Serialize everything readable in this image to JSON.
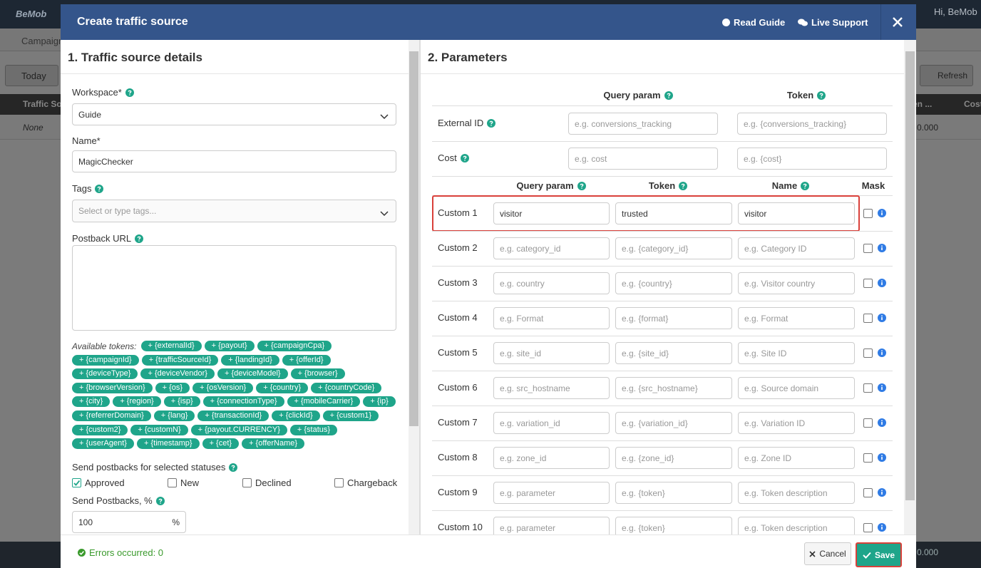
{
  "background": {
    "logo": "BeMob",
    "user": "Hi, BeMob",
    "tab": "Campaign",
    "date": "Today",
    "refresh": "Refresh",
    "column_1": "Traffic So",
    "row_1": "None",
    "column_2": "en ...",
    "column_3": "Cost",
    "cell_1": "0.000",
    "cell_2": "0.000"
  },
  "modal": {
    "title": "Create traffic source",
    "links": [
      "Read Guide",
      "Live Support"
    ]
  },
  "details": {
    "heading": "1. Traffic source details",
    "workspace": {
      "label": "Workspace*",
      "value": "Guide"
    },
    "name": {
      "label": "Name*",
      "value": "MagicChecker"
    },
    "tags": {
      "label": "Tags",
      "placeholder": "Select or type tags..."
    },
    "postback": {
      "label": "Postback URL"
    },
    "tokens_label": "Available tokens:",
    "tokens": [
      "+ {externalId}",
      "+ {payout}",
      "+ {campaignCpa}",
      "+ {campaignId}",
      "+ {trafficSourceId}",
      "+ {landingId}",
      "+ {offerId}",
      "+ {deviceType}",
      "+ {deviceVendor}",
      "+ {deviceModel}",
      "+ {browser}",
      "+ {browserVersion}",
      "+ {os}",
      "+ {osVersion}",
      "+ {country}",
      "+ {countryCode}",
      "+ {city}",
      "+ {region}",
      "+ {isp}",
      "+ {connectionType}",
      "+ {mobileCarrier}",
      "+ {ip}",
      "+ {referrerDomain}",
      "+ {lang}",
      "+ {transactionId}",
      "+ {clickId}",
      "+ {custom1}",
      "+ {custom2}",
      "+ {customN}",
      "+ {payout.CURRENCY}",
      "+ {status}",
      "+ {userAgent}",
      "+ {timestamp}",
      "+ {cet}",
      "+ {offerName}"
    ],
    "statuses_label": "Send postbacks for selected statuses",
    "statuses": [
      {
        "label": "Approved",
        "checked": true
      },
      {
        "label": "New",
        "checked": false
      },
      {
        "label": "Declined",
        "checked": false
      },
      {
        "label": "Chargeback",
        "checked": false
      }
    ],
    "percent": {
      "label": "Send Postbacks, %",
      "value": "100",
      "unit": "%"
    }
  },
  "params": {
    "heading": "2. Parameters",
    "header_1": [
      "Query param",
      "Token"
    ],
    "rows_1": [
      {
        "label": "External ID",
        "query": "e.g. conversions_tracking",
        "token": "e.g. {conversions_tracking}"
      },
      {
        "label": "Cost",
        "query": "e.g. cost",
        "token": "e.g. {cost}"
      }
    ],
    "header_2": [
      "Query param",
      "Token",
      "Name",
      "Mask"
    ],
    "custom": [
      {
        "label": "Custom 1",
        "query": "visitor",
        "token": "trusted",
        "name": "visitor",
        "filled": true,
        "mask": false,
        "highlight": true
      },
      {
        "label": "Custom 2",
        "query": "e.g. category_id",
        "token": "e.g. {category_id}",
        "name": "e.g. Category ID",
        "filled": false,
        "mask": false
      },
      {
        "label": "Custom 3",
        "query": "e.g. country",
        "token": "e.g. {country}",
        "name": "e.g. Visitor country",
        "filled": false,
        "mask": false
      },
      {
        "label": "Custom 4",
        "query": "e.g. Format",
        "token": "e.g. {format}",
        "name": "e.g. Format",
        "filled": false,
        "mask": false
      },
      {
        "label": "Custom 5",
        "query": "e.g. site_id",
        "token": "e.g. {site_id}",
        "name": "e.g. Site ID",
        "filled": false,
        "mask": false
      },
      {
        "label": "Custom 6",
        "query": "e.g. src_hostname",
        "token": "e.g. {src_hostname}",
        "name": "e.g. Source domain",
        "filled": false,
        "mask": false
      },
      {
        "label": "Custom 7",
        "query": "e.g. variation_id",
        "token": "e.g. {variation_id}",
        "name": "e.g. Variation ID",
        "filled": false,
        "mask": false
      },
      {
        "label": "Custom 8",
        "query": "e.g. zone_id",
        "token": "e.g. {zone_id}",
        "name": "e.g. Zone ID",
        "filled": false,
        "mask": false
      },
      {
        "label": "Custom 9",
        "query": "e.g. parameter",
        "token": "e.g. {token}",
        "name": "e.g. Token description",
        "filled": false,
        "mask": false
      },
      {
        "label": "Custom 10",
        "query": "e.g. parameter",
        "token": "e.g. {token}",
        "name": "e.g. Token description",
        "filled": false,
        "mask": false
      }
    ]
  },
  "footer": {
    "status": "Errors occurred: 0",
    "cancel": "Cancel",
    "save": "Save",
    "save_highlight": true
  }
}
